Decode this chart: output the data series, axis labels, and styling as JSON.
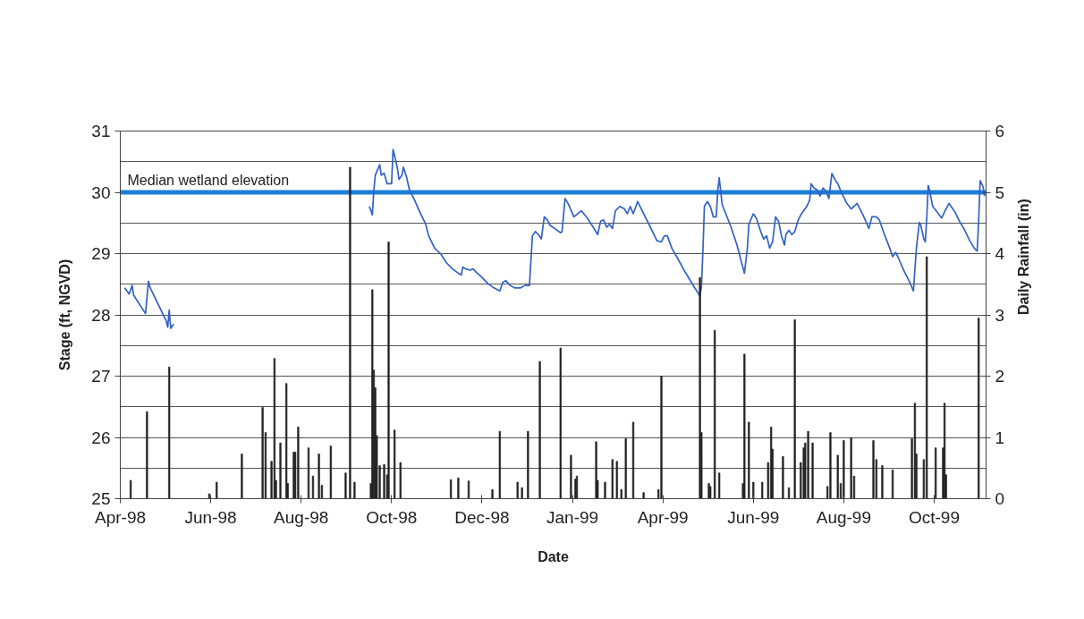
{
  "chart_data": {
    "type": "line",
    "xlabel": "Date",
    "ylabel": "Stage (ft, NGVD)",
    "y2label": "Daily Rainfall (in)",
    "xlim": [
      "1998-04-01",
      "1999-11-06"
    ],
    "xticks": [
      {
        "value": "1998-04-01",
        "label": "Apr-98"
      },
      {
        "value": "1998-06-01",
        "label": "Jun-98"
      },
      {
        "value": "1998-08-01",
        "label": "Aug-98"
      },
      {
        "value": "1998-10-01",
        "label": "Oct-98"
      },
      {
        "value": "1998-12-01",
        "label": "Dec-98"
      },
      {
        "value": "1999-01-31",
        "label": "Jan-99"
      },
      {
        "value": "1999-04-02",
        "label": "Apr-99"
      },
      {
        "value": "1999-06-02",
        "label": "Jun-99"
      },
      {
        "value": "1999-08-02",
        "label": "Aug-99"
      },
      {
        "value": "1999-10-02",
        "label": "Oct-99"
      }
    ],
    "ylim": [
      25,
      31
    ],
    "yticks": [
      25,
      {
        "value": 25.5,
        "label": null
      },
      26,
      {
        "value": 26.5,
        "label": null
      },
      27,
      {
        "value": 27.5,
        "label": null
      },
      28,
      {
        "value": 28.5,
        "label": null
      },
      29,
      {
        "value": 29.5,
        "label": null
      },
      30,
      {
        "value": 30.5,
        "label": null
      },
      31
    ],
    "y2lim": [
      0,
      6
    ],
    "y2ticks": [
      0,
      1,
      2,
      3,
      4,
      5,
      6
    ],
    "grid": "y",
    "ref_lines": [
      {
        "axis": "y",
        "value": 30,
        "label": "Median wetland elevation",
        "color": "#1b7fd8"
      }
    ],
    "series": [
      {
        "color": "#3262c4",
        "x": [
          "1998-04-04",
          "1998-04-07",
          "1998-04-09",
          "1998-04-10",
          "1998-04-18",
          "1998-04-20",
          "1998-04-21",
          "1998-05-02",
          "1998-05-03",
          "1998-05-04",
          "1998-05-05",
          "1998-05-07",
          "1998-05-08",
          "1998-09-16",
          "1998-09-18",
          "1998-09-19",
          "1998-09-20",
          "1998-09-23",
          "1998-09-24",
          "1998-09-26",
          "1998-09-28",
          "1998-10-01",
          "1998-10-02",
          "1998-10-04",
          "1998-10-05",
          "1998-10-06",
          "1998-10-08",
          "1998-10-09",
          "1998-10-11",
          "1998-10-13",
          "1998-10-16",
          "1998-10-20",
          "1998-10-24",
          "1998-10-26",
          "1998-10-30",
          "1998-11-03",
          "1998-11-07",
          "1998-11-11",
          "1998-11-15",
          "1998-11-17",
          "1998-11-18",
          "1998-11-20",
          "1998-11-23",
          "1998-11-25",
          "1998-11-27",
          "1998-12-01",
          "1998-12-05",
          "1998-12-09",
          "1998-12-13",
          "1998-12-15",
          "1998-12-17",
          "1998-12-20",
          "1998-12-23",
          "1998-12-27",
          "1998-12-30",
          "1999-01-02",
          "1999-01-04",
          "1999-01-06",
          "1999-01-08",
          "1999-01-10",
          "1999-01-12",
          "1999-01-14",
          "1999-01-16",
          "1999-01-19",
          "1999-01-23",
          "1999-01-24",
          "1999-01-26",
          "1999-01-28",
          "1999-02-01",
          "1999-02-06",
          "1999-02-10",
          "1999-02-14",
          "1999-02-17",
          "1999-02-19",
          "1999-02-21",
          "1999-02-23",
          "1999-02-25",
          "1999-02-27",
          "1999-03-01",
          "1999-03-04",
          "1999-03-07",
          "1999-03-09",
          "1999-03-11",
          "1999-03-13",
          "1999-03-16",
          "1999-03-20",
          "1999-03-24",
          "1999-03-29",
          "1999-04-01",
          "1999-04-03",
          "1999-04-05",
          "1999-04-08",
          "1999-04-12",
          "1999-04-17",
          "1999-04-23",
          "1999-04-27",
          "1999-04-28",
          "1999-04-29",
          "1999-04-30",
          "1999-05-02",
          "1999-05-04",
          "1999-05-06",
          "1999-05-08",
          "1999-05-09",
          "1999-05-10",
          "1999-05-11",
          "1999-05-12",
          "1999-05-18",
          "1999-05-22",
          "1999-05-27",
          "1999-05-29",
          "1999-05-30",
          "1999-06-02",
          "1999-06-04",
          "1999-06-07",
          "1999-06-09",
          "1999-06-11",
          "1999-06-13",
          "1999-06-15",
          "1999-06-17",
          "1999-06-19",
          "1999-06-21",
          "1999-06-23",
          "1999-06-24",
          "1999-06-26",
          "1999-06-28",
          "1999-06-30",
          "1999-07-02",
          "1999-07-04",
          "1999-07-06",
          "1999-07-08",
          "1999-07-10",
          "1999-07-11",
          "1999-07-13",
          "1999-07-15",
          "1999-07-17",
          "1999-07-19",
          "1999-07-21",
          "1999-07-23",
          "1999-07-25",
          "1999-07-27",
          "1999-07-29",
          "1999-07-31",
          "1999-08-02",
          "1999-08-04",
          "1999-08-07",
          "1999-08-09",
          "1999-08-11",
          "1999-08-15",
          "1999-08-19",
          "1999-08-21",
          "1999-08-24",
          "1999-08-26",
          "1999-08-29",
          "1999-09-02",
          "1999-09-04",
          "1999-09-06",
          "1999-09-08",
          "1999-09-12",
          "1999-09-15",
          "1999-09-18",
          "1999-09-20",
          "1999-09-22",
          "1999-09-23",
          "1999-09-25",
          "1999-09-26",
          "1999-09-27",
          "1999-09-28",
          "1999-09-29",
          "1999-10-01",
          "1999-10-04",
          "1999-10-07",
          "1999-10-09",
          "1999-10-12",
          "1999-10-16",
          "1999-10-19",
          "1999-10-22",
          "1999-10-26",
          "1999-10-29",
          "1999-10-31",
          "1999-11-01",
          "1999-11-02",
          "1999-11-04",
          "1999-11-05"
        ],
        "values": [
          28.44,
          28.34,
          28.48,
          28.32,
          28.02,
          28.55,
          28.45,
          27.9,
          27.8,
          28.08,
          27.78,
          27.85,
          null,
          29.77,
          29.63,
          30.02,
          30.28,
          30.45,
          30.28,
          30.31,
          30.14,
          30.14,
          30.7,
          30.5,
          30.38,
          30.21,
          30.28,
          30.41,
          30.26,
          30.04,
          29.9,
          29.68,
          29.48,
          29.29,
          29.09,
          29.0,
          28.85,
          28.75,
          28.68,
          28.65,
          28.78,
          28.75,
          28.73,
          28.75,
          28.7,
          28.61,
          28.51,
          28.44,
          28.39,
          28.53,
          28.56,
          28.48,
          28.44,
          28.44,
          28.48,
          28.48,
          29.29,
          29.36,
          29.31,
          29.24,
          29.6,
          29.55,
          29.46,
          29.41,
          29.34,
          29.36,
          29.9,
          29.82,
          29.6,
          29.7,
          29.58,
          29.43,
          29.31,
          29.53,
          29.55,
          29.43,
          29.48,
          29.41,
          29.7,
          29.77,
          29.73,
          29.65,
          29.77,
          29.65,
          29.85,
          29.65,
          29.46,
          29.21,
          29.19,
          29.29,
          29.29,
          29.09,
          28.92,
          28.7,
          28.46,
          28.31,
          28.46,
          29.04,
          29.77,
          29.85,
          29.77,
          29.6,
          29.6,
          30.02,
          30.24,
          30.02,
          29.8,
          29.43,
          29.14,
          28.68,
          29.09,
          29.48,
          29.65,
          29.58,
          29.36,
          29.24,
          29.29,
          29.09,
          29.19,
          29.6,
          29.53,
          29.29,
          29.14,
          29.31,
          29.38,
          29.31,
          29.36,
          29.53,
          29.63,
          29.7,
          29.77,
          29.87,
          30.14,
          30.07,
          30.04,
          29.94,
          30.07,
          30.02,
          29.9,
          30.31,
          30.21,
          30.14,
          30.02,
          29.92,
          29.82,
          29.73,
          29.77,
          29.82,
          29.63,
          29.41,
          29.6,
          29.6,
          29.55,
          29.34,
          29.09,
          28.95,
          29.02,
          28.92,
          28.7,
          28.56,
          28.39,
          29.09,
          29.51,
          29.46,
          29.24,
          29.19,
          29.58,
          30.11,
          30.02,
          29.77,
          29.68,
          29.58,
          29.68,
          29.82,
          29.68,
          29.53,
          29.41,
          29.21,
          29.09,
          29.04,
          29.53,
          30.19,
          30.09,
          29.94
        ]
      },
      {
        "type": "bar",
        "axis": "y2",
        "color": "#222222",
        "x": [
          "1998-04-08",
          "1998-04-19",
          "1998-05-04",
          "1998-05-31",
          "1998-06-05",
          "1998-06-22",
          "1998-07-06",
          "1998-07-08",
          "1998-07-12",
          "1998-07-14",
          "1998-07-15",
          "1998-07-18",
          "1998-07-22",
          "1998-07-23",
          "1998-07-27",
          "1998-07-28",
          "1998-07-30",
          "1998-08-06",
          "1998-08-09",
          "1998-08-13",
          "1998-08-15",
          "1998-08-21",
          "1998-08-31",
          "1998-09-03",
          "1998-09-06",
          "1998-09-17",
          "1998-09-18",
          "1998-09-19",
          "1998-09-20",
          "1998-09-21",
          "1998-09-23",
          "1998-09-26",
          "1998-09-28",
          "1998-09-29",
          "1998-10-03",
          "1998-10-07",
          "1998-11-10",
          "1998-11-15",
          "1998-11-22",
          "1998-12-08",
          "1998-12-13",
          "1998-12-25",
          "1998-12-28",
          "1999-01-01",
          "1999-01-09",
          "1999-01-23",
          "1999-01-30",
          "1999-02-02",
          "1999-02-03",
          "1999-02-16",
          "1999-02-17",
          "1999-02-22",
          "1999-02-27",
          "1999-03-02",
          "1999-03-05",
          "1999-03-08",
          "1999-03-13",
          "1999-03-20",
          "1999-03-30",
          "1999-04-01",
          "1999-04-27",
          "1999-04-28",
          "1999-05-03",
          "1999-05-04",
          "1999-05-07",
          "1999-05-10",
          "1999-05-26",
          "1999-05-27",
          "1999-05-30",
          "1999-06-02",
          "1999-06-08",
          "1999-06-12",
          "1999-06-14",
          "1999-06-15",
          "1999-06-22",
          "1999-06-26",
          "1999-06-30",
          "1999-07-04",
          "1999-07-06",
          "1999-07-07",
          "1999-07-09",
          "1999-07-12",
          "1999-07-22",
          "1999-07-24",
          "1999-07-29",
          "1999-07-31",
          "1999-08-02",
          "1999-08-07",
          "1999-08-09",
          "1999-08-22",
          "1999-08-24",
          "1999-08-28",
          "1999-09-04",
          "1999-09-17",
          "1999-09-19",
          "1999-09-20",
          "1999-09-25",
          "1999-09-27",
          "1999-10-03",
          "1999-10-08",
          "1999-10-09",
          "1999-10-10",
          "1999-11-01"
        ],
        "values": [
          0.3,
          1.42,
          2.15,
          0.08,
          0.27,
          0.73,
          1.49,
          1.08,
          0.61,
          2.29,
          0.3,
          0.91,
          1.88,
          0.25,
          0.76,
          0.76,
          1.17,
          0.83,
          0.37,
          0.73,
          0.22,
          0.86,
          0.42,
          5.41,
          0.27,
          0.25,
          3.41,
          2.1,
          1.81,
          1.03,
          0.54,
          0.56,
          0.39,
          4.19,
          1.12,
          0.59,
          0.31,
          0.34,
          0.29,
          0.15,
          1.1,
          0.27,
          0.18,
          1.1,
          2.24,
          2.46,
          0.71,
          0.32,
          0.37,
          0.93,
          0.3,
          0.27,
          0.64,
          0.61,
          0.15,
          0.98,
          1.25,
          0.1,
          0.15,
          2.0,
          3.61,
          1.08,
          0.25,
          0.2,
          2.75,
          0.42,
          0.25,
          2.36,
          1.25,
          0.27,
          0.27,
          0.59,
          1.17,
          0.81,
          0.69,
          0.18,
          2.92,
          0.59,
          0.83,
          0.91,
          1.1,
          0.91,
          0.2,
          1.08,
          0.71,
          0.25,
          0.95,
          1.0,
          0.37,
          0.95,
          0.64,
          0.54,
          0.47,
          0.98,
          1.56,
          0.73,
          0.64,
          3.95,
          0.83,
          0.83,
          1.56,
          0.39,
          2.95
        ]
      }
    ]
  }
}
